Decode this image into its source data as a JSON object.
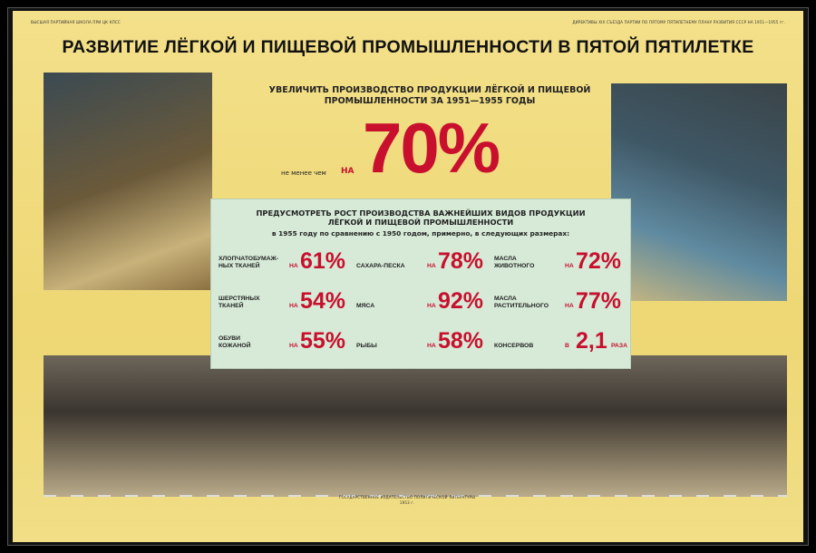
{
  "header": {
    "left_small": "ВЫСШАЯ ПАРТИЙНАЯ ШКОЛА ПРИ ЦК КПСС",
    "right_small": "ДИРЕКТИВЫ XIX СЪЕЗДА ПАРТИИ ПО ПЯТОМУ ПЯТИЛЕТНЕМУ ПЛАНУ РАЗВИТИЯ СССР НА 1951—1955 гг.",
    "title": "РАЗВИТИЕ ЛЁГКОЙ И ПИЩЕВОЙ ПРОМЫШЛЕННОСТИ В ПЯТОЙ ПЯТИЛЕТКЕ"
  },
  "goal": {
    "line1": "УВЕЛИЧИТЬ ПРОИЗВОДСТВО ПРОДУКЦИИ ЛЁГКОЙ И ПИЩЕВОЙ",
    "line2": "ПРОМЫШЛЕННОСТИ ЗА 1951—1955 ГОДЫ",
    "prefix": "не менее чем",
    "na": "НА",
    "value": "70%"
  },
  "box": {
    "line1": "ПРЕДУСМОТРЕТЬ РОСТ ПРОИЗВОДСТВА ВАЖНЕЙШИХ ВИДОВ ПРОДУКЦИИ",
    "line2": "ЛЁГКОЙ И ПИЩЕВОЙ ПРОМЫШЛЕННОСТИ",
    "line3": "в 1955 году по сравнению с 1950 годом, примерно, в следующих размерах:",
    "items": [
      {
        "l1": "ХЛОПЧАТОБУМАЖ-",
        "l2": "НЫХ ТКАНЕЙ",
        "na": "НА",
        "value": "61%"
      },
      {
        "l1": "",
        "l2": "САХАРА-ПЕСКА",
        "na": "НА",
        "value": "78%"
      },
      {
        "l1": "МАСЛА",
        "l2": "ЖИВОТНОГО",
        "na": "НА",
        "value": "72%"
      },
      {
        "l1": "ШЕРСТЯНЫХ",
        "l2": "ТКАНЕЙ",
        "na": "НА",
        "value": "54%"
      },
      {
        "l1": "",
        "l2": "МЯСА",
        "na": "НА",
        "value": "92%"
      },
      {
        "l1": "МАСЛА",
        "l2": "РАСТИТЕЛЬНОГО",
        "na": "НА",
        "value": "77%"
      },
      {
        "l1": "ОБУВИ",
        "l2": "КОЖАНОЙ",
        "na": "НА",
        "value": "55%"
      },
      {
        "l1": "",
        "l2": "РЫБЫ",
        "na": "НА",
        "value": "58%"
      },
      {
        "l1": "",
        "l2": "КОНСЕРВОВ",
        "na": "В",
        "value": "2,1",
        "suffix": "РАЗА"
      }
    ]
  },
  "footer": {
    "publisher": "ГОСУДАРСТВЕННОЕ ИЗДАТЕЛЬСТВО ПОЛИТИЧЕСКОЙ ЛИТЕРАТУРЫ",
    "year": "1953 г."
  },
  "colors": {
    "accent": "#c8102e",
    "background": "#f0dc7a",
    "panel": "#d6ead7"
  }
}
